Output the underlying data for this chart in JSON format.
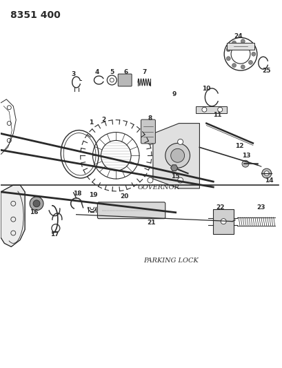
{
  "title": "8351 400",
  "governor_label": "GOVERNOR",
  "parking_label": "PARKING LOCK",
  "bg_color": "#ffffff",
  "lc": "#2a2a2a",
  "title_fontsize": 10,
  "part_label_fontsize": 6.5
}
